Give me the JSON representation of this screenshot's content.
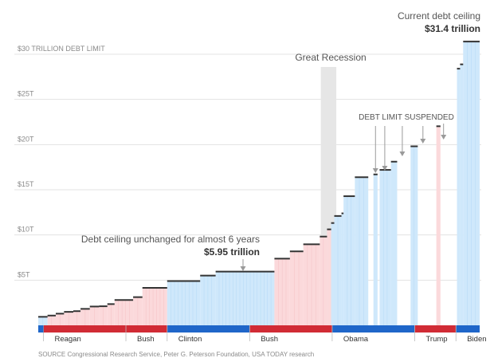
{
  "chart_data": {
    "type": "step-area",
    "title": "",
    "unit": "trillion dollars",
    "ylim": [
      0,
      33
    ],
    "y_ticks": [
      {
        "value": 5,
        "label": "$5T"
      },
      {
        "value": 10,
        "label": "$10T"
      },
      {
        "value": 15,
        "label": "$15T"
      },
      {
        "value": 20,
        "label": "$20T"
      },
      {
        "value": 25,
        "label": "$25T"
      },
      {
        "value": 30,
        "label": "$30 TRILLION DEBT LIMIT"
      }
    ],
    "x_range": [
      1980.5,
      2023.3
    ],
    "presidents": [
      {
        "name": "Reagan",
        "start": 1981,
        "end": 1989,
        "party": "R"
      },
      {
        "name": "Bush",
        "start": 1989,
        "end": 1993,
        "party": "R"
      },
      {
        "name": "Clinton",
        "start": 1993,
        "end": 2001,
        "party": "D"
      },
      {
        "name": "Bush",
        "start": 2001,
        "end": 2009,
        "party": "R"
      },
      {
        "name": "Obama",
        "start": 2009,
        "end": 2017,
        "party": "D"
      },
      {
        "name": "Trump",
        "start": 2017,
        "end": 2021,
        "party": "R"
      },
      {
        "name": "Biden",
        "start": 2021,
        "end": 2023.3,
        "party": "D"
      }
    ],
    "steps": [
      {
        "start": 1980.5,
        "end": 1981.4,
        "value": 0.94
      },
      {
        "start": 1981.4,
        "end": 1982.2,
        "value": 1.08
      },
      {
        "start": 1982.2,
        "end": 1983.0,
        "value": 1.29
      },
      {
        "start": 1983.0,
        "end": 1983.9,
        "value": 1.49
      },
      {
        "start": 1983.9,
        "end": 1984.6,
        "value": 1.57
      },
      {
        "start": 1984.6,
        "end": 1985.5,
        "value": 1.82
      },
      {
        "start": 1985.5,
        "end": 1986.4,
        "value": 2.08
      },
      {
        "start": 1986.4,
        "end": 1987.2,
        "value": 2.11
      },
      {
        "start": 1987.2,
        "end": 1987.9,
        "value": 2.35
      },
      {
        "start": 1987.9,
        "end": 1989.7,
        "value": 2.8
      },
      {
        "start": 1989.7,
        "end": 1990.6,
        "value": 3.12
      },
      {
        "start": 1990.6,
        "end": 1993.0,
        "value": 4.15
      },
      {
        "start": 1993.0,
        "end": 1996.2,
        "value": 4.9
      },
      {
        "start": 1996.2,
        "end": 1997.7,
        "value": 5.5
      },
      {
        "start": 1997.7,
        "end": 2003.4,
        "value": 5.95
      },
      {
        "start": 2003.4,
        "end": 2004.9,
        "value": 7.38
      },
      {
        "start": 2004.9,
        "end": 2006.2,
        "value": 8.18
      },
      {
        "start": 2006.2,
        "end": 2007.8,
        "value": 8.97
      },
      {
        "start": 2007.8,
        "end": 2008.5,
        "value": 9.82
      },
      {
        "start": 2008.5,
        "end": 2008.9,
        "value": 10.62
      },
      {
        "start": 2008.9,
        "end": 2009.2,
        "value": 11.32
      },
      {
        "start": 2009.2,
        "end": 2009.9,
        "value": 12.1
      },
      {
        "start": 2009.9,
        "end": 2010.1,
        "value": 12.39
      },
      {
        "start": 2010.1,
        "end": 2011.2,
        "value": 14.29
      },
      {
        "start": 2011.2,
        "end": 2012.5,
        "value": 16.39
      },
      {
        "start": 2013.0,
        "end": 2013.4,
        "value": 16.7
      },
      {
        "start": 2013.6,
        "end": 2014.7,
        "value": 17.2
      },
      {
        "start": 2014.7,
        "end": 2015.3,
        "value": 18.11
      },
      {
        "start": 2016.6,
        "end": 2017.3,
        "value": 19.81
      },
      {
        "start": 2019.1,
        "end": 2019.5,
        "value": 22.03
      },
      {
        "start": 2021.1,
        "end": 2021.4,
        "value": 28.4
      },
      {
        "start": 2021.4,
        "end": 2021.7,
        "value": 28.88
      },
      {
        "start": 2021.7,
        "end": 2023.3,
        "value": 31.4
      }
    ],
    "recession": {
      "start": 2007.9,
      "end": 2009.4,
      "label": "Great Recession"
    },
    "suspensions": {
      "label": "DEBT LIMIT SUSPENDED",
      "years": [
        2013.2,
        2014.1,
        2015.8,
        2017.8,
        2019.8
      ]
    },
    "annotations": {
      "unchanged_text": "Debt ceiling unchanged for almost 6 years",
      "unchanged_value": "$5.95 trillion",
      "current_label": "Current debt ceiling",
      "current_value": "$31.4 trillion"
    },
    "source": "SOURCE Congressional Research Service, Peter G. Peterson Foundation, USA TODAY research"
  },
  "colors": {
    "republican": "#d12b35",
    "democrat": "#1f66c9",
    "republican_fill": "#fbd9db",
    "democrat_fill": "#cfe8fb",
    "step_line": "#333333",
    "grid": "#e3e3e3",
    "recession": "#e6e6e6",
    "text_muted": "#8a8a8a",
    "text_dark": "#333333",
    "arrow": "#9a9a9a"
  }
}
